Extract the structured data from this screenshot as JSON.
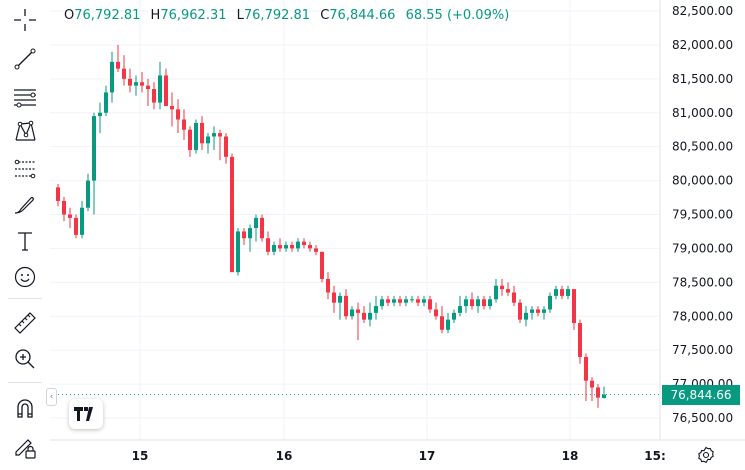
{
  "legend": {
    "open_label": "O",
    "open_value": "76,792.81",
    "high_label": "H",
    "high_value": "76,962.31",
    "low_label": "L",
    "low_value": "76,792.81",
    "close_label": "C",
    "close_value": "76,844.66",
    "change": "68.55 (+0.09%)"
  },
  "toolbar": {
    "tools": [
      "crosshair-icon",
      "trend-line-icon",
      "horizontal-lines-icon",
      "pattern-icon",
      "fib-retracement-icon",
      "brush-icon",
      "text-icon",
      "emoji-icon",
      "ruler-icon",
      "zoom-in-icon",
      "magnet-icon",
      "lock-draw-icon"
    ]
  },
  "price_badge": "76,844.66",
  "logo": "TV",
  "colors": {
    "up": "#089981",
    "down": "#F23645",
    "grid": "#F0F3FA",
    "axis_text": "#131722"
  },
  "chart_data": {
    "type": "candlestick",
    "y_axis_labels": [
      "82,500.00",
      "82,000.00",
      "81,500.00",
      "81,000.00",
      "80,500.00",
      "80,000.00",
      "79,500.00",
      "79,000.00",
      "78,500.00",
      "78,000.00",
      "77,500.00",
      "77,000.00",
      "76,500.00"
    ],
    "x_axis_labels": [
      "15",
      "16",
      "17",
      "18",
      "15:"
    ],
    "ylim": [
      76300,
      82650
    ],
    "last_price": 76844.66,
    "candles": [
      [
        79900,
        79950,
        79620,
        79700
      ],
      [
        79700,
        79760,
        79400,
        79500
      ],
      [
        79500,
        79600,
        79300,
        79450
      ],
      [
        79450,
        79500,
        79150,
        79200
      ],
      [
        79200,
        79700,
        79150,
        79600
      ],
      [
        79600,
        80100,
        79550,
        80000
      ],
      [
        80000,
        81000,
        79500,
        80950
      ],
      [
        80950,
        81150,
        80700,
        81000
      ],
      [
        81000,
        81400,
        80950,
        81300
      ],
      [
        81300,
        81900,
        81150,
        81750
      ],
      [
        81750,
        82000,
        81600,
        81650
      ],
      [
        81650,
        81850,
        81400,
        81500
      ],
      [
        81500,
        81650,
        81300,
        81400
      ],
      [
        81400,
        81550,
        81250,
        81450
      ],
      [
        81450,
        81600,
        81300,
        81400
      ],
      [
        81400,
        81500,
        81100,
        81350
      ],
      [
        81350,
        81450,
        81050,
        81150
      ],
      [
        81150,
        81750,
        81050,
        81550
      ],
      [
        81550,
        81650,
        81100,
        81100
      ],
      [
        81100,
        81300,
        80800,
        81050
      ],
      [
        81050,
        81200,
        80700,
        80900
      ],
      [
        80900,
        81050,
        80600,
        80750
      ],
      [
        80750,
        80800,
        80350,
        80450
      ],
      [
        80450,
        80900,
        80400,
        80850
      ],
      [
        80850,
        80950,
        80450,
        80550
      ],
      [
        80550,
        80700,
        80400,
        80650
      ],
      [
        80650,
        80800,
        80450,
        80700
      ],
      [
        80700,
        80750,
        80300,
        80650
      ],
      [
        80650,
        80700,
        80250,
        80350
      ],
      [
        80350,
        80400,
        78700,
        78650
      ],
      [
        78650,
        79300,
        78600,
        79250
      ],
      [
        79250,
        79300,
        79050,
        79150
      ],
      [
        79150,
        79350,
        78950,
        79300
      ],
      [
        79300,
        79500,
        79100,
        79450
      ],
      [
        79450,
        79500,
        79100,
        79150
      ],
      [
        79150,
        79250,
        78900,
        78950
      ],
      [
        78950,
        79100,
        78900,
        79050
      ],
      [
        79050,
        79150,
        78950,
        79000
      ],
      [
        79000,
        79100,
        78950,
        79050
      ],
      [
        79050,
        79100,
        78950,
        79000
      ],
      [
        79000,
        79150,
        78950,
        79100
      ],
      [
        79100,
        79150,
        79000,
        79050
      ],
      [
        79050,
        79100,
        78950,
        79000
      ],
      [
        79000,
        79050,
        78900,
        78950
      ],
      [
        78950,
        78950,
        78500,
        78550
      ],
      [
        78550,
        78650,
        78250,
        78350
      ],
      [
        78350,
        78450,
        78050,
        78200
      ],
      [
        78200,
        78350,
        77950,
        78300
      ],
      [
        78300,
        78400,
        77950,
        78000
      ],
      [
        78000,
        78150,
        77950,
        78100
      ],
      [
        78100,
        78200,
        77650,
        78050
      ],
      [
        78050,
        78150,
        77900,
        77950
      ],
      [
        77950,
        78200,
        77850,
        78050
      ],
      [
        78050,
        78300,
        77950,
        78150
      ],
      [
        78150,
        78300,
        78100,
        78250
      ],
      [
        78250,
        78300,
        78150,
        78200
      ],
      [
        78200,
        78300,
        78150,
        78250
      ],
      [
        78250,
        78300,
        78150,
        78200
      ],
      [
        78200,
        78300,
        78150,
        78250
      ],
      [
        78250,
        78300,
        78200,
        78250
      ],
      [
        78250,
        78300,
        78150,
        78200
      ],
      [
        78200,
        78300,
        78150,
        78250
      ],
      [
        78250,
        78300,
        78050,
        78100
      ],
      [
        78100,
        78200,
        77950,
        78000
      ],
      [
        78000,
        78150,
        77750,
        77800
      ],
      [
        77800,
        78050,
        77750,
        77950
      ],
      [
        77950,
        78100,
        77900,
        78050
      ],
      [
        78050,
        78300,
        78000,
        78150
      ],
      [
        78150,
        78300,
        78050,
        78250
      ],
      [
        78250,
        78350,
        78100,
        78150
      ],
      [
        78150,
        78300,
        78050,
        78250
      ],
      [
        78250,
        78300,
        78100,
        78150
      ],
      [
        78150,
        78300,
        78100,
        78250
      ],
      [
        78250,
        78550,
        78200,
        78450
      ],
      [
        78450,
        78550,
        78300,
        78400
      ],
      [
        78400,
        78500,
        78300,
        78350
      ],
      [
        78350,
        78450,
        78150,
        78200
      ],
      [
        78200,
        78250,
        77900,
        77950
      ],
      [
        77950,
        78150,
        77850,
        78050
      ],
      [
        78050,
        78150,
        77950,
        78100
      ],
      [
        78100,
        78150,
        78000,
        78050
      ],
      [
        78050,
        78150,
        77950,
        78100
      ],
      [
        78100,
        78350,
        78050,
        78300
      ],
      [
        78300,
        78450,
        78250,
        78400
      ],
      [
        78400,
        78450,
        78250,
        78300
      ],
      [
        78300,
        78450,
        78250,
        78400
      ],
      [
        78400,
        78400,
        77800,
        77900
      ],
      [
        77900,
        77950,
        77300,
        77400
      ],
      [
        77400,
        77450,
        76750,
        77050
      ],
      [
        77050,
        77100,
        76750,
        76950
      ],
      [
        76950,
        77000,
        76650,
        76800
      ],
      [
        76793,
        76962,
        76793,
        76845
      ]
    ]
  }
}
